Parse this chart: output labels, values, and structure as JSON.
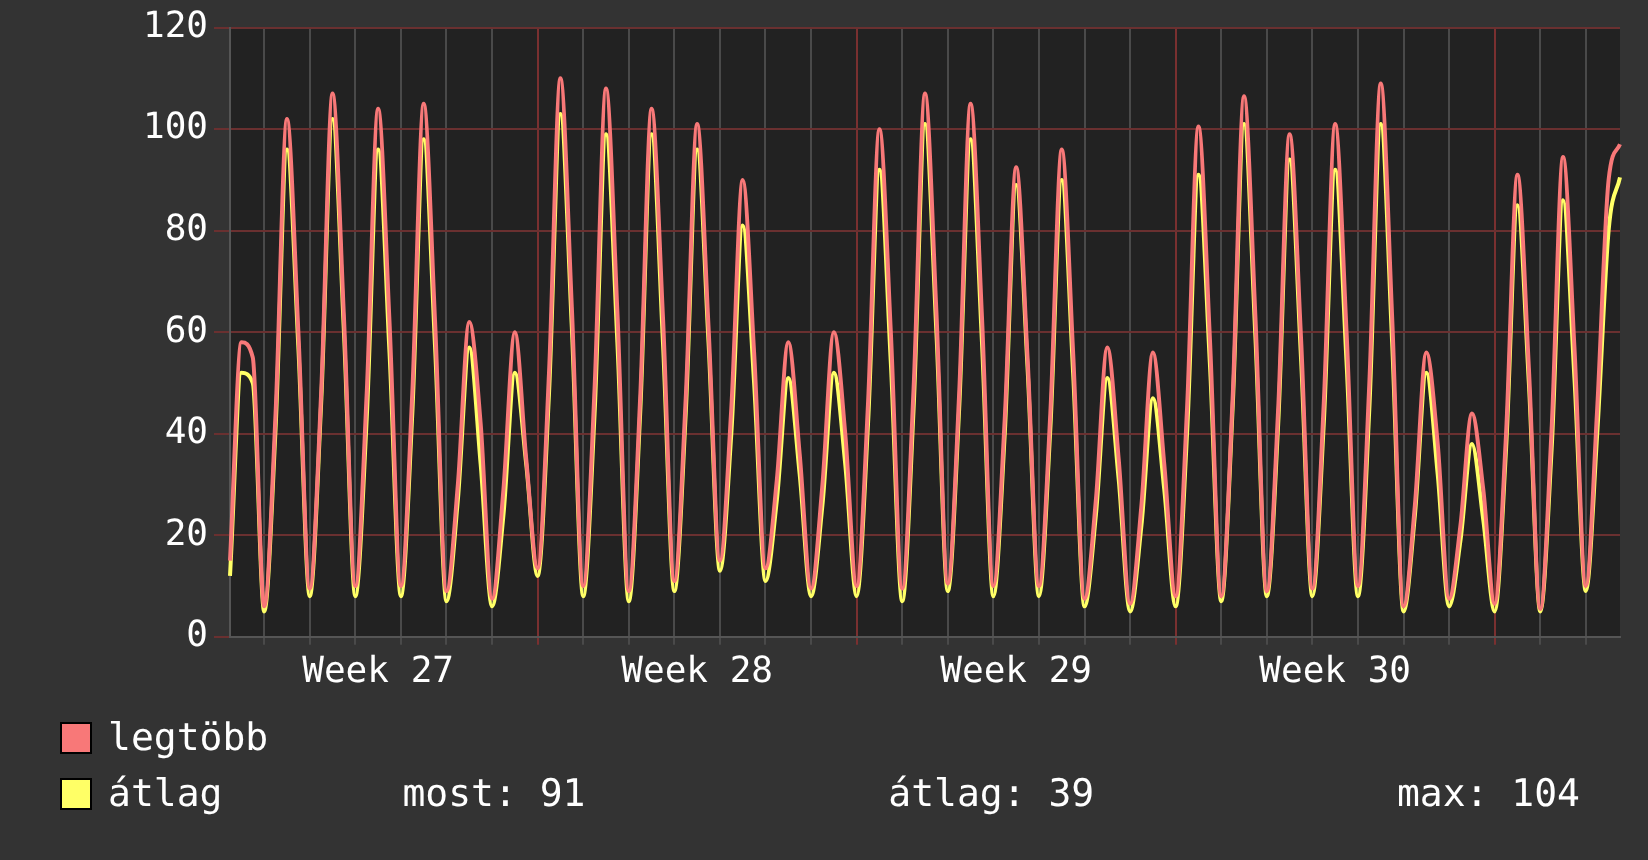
{
  "chart_data": {
    "type": "line",
    "categories": [
      null,
      null,
      null,
      null,
      null,
      null,
      null,
      null,
      null,
      null,
      null,
      null,
      null,
      "Week 27",
      null,
      null,
      null,
      null,
      null,
      null,
      null,
      null,
      null,
      null,
      null,
      null,
      null,
      null,
      null,
      null,
      null,
      null,
      null,
      null,
      null,
      null,
      null,
      null,
      null,
      null,
      null,
      "Week 28",
      null,
      null,
      null,
      null,
      null,
      null,
      null,
      null,
      null,
      null,
      null,
      null,
      null,
      null,
      null,
      null,
      null,
      null,
      null,
      null,
      null,
      null,
      null,
      null,
      null,
      null,
      null,
      "Week 29",
      null,
      null,
      null,
      null,
      null,
      null,
      null,
      null,
      null,
      null,
      null,
      null,
      null,
      null,
      null,
      null,
      null,
      null,
      null,
      null,
      null,
      null,
      null,
      null,
      null,
      null,
      null,
      "Week 30",
      null,
      null,
      null,
      null,
      null,
      null,
      null,
      null,
      null,
      null,
      null,
      null,
      null,
      null,
      null,
      null,
      null,
      null,
      null,
      null,
      null,
      null,
      null,
      null,
      null
    ],
    "series": [
      {
        "name": "legtöbb",
        "color": "#f87878",
        "values": [
          15,
          58,
          55,
          6,
          44,
          102,
          60,
          9.5,
          48,
          107,
          63,
          10,
          48,
          104,
          62,
          10,
          48,
          105,
          62,
          9,
          30,
          62,
          42,
          7.5,
          29,
          60,
          35,
          13.5,
          52,
          110,
          65,
          10,
          49,
          108,
          64,
          9,
          47,
          104,
          63,
          11,
          47,
          101,
          61,
          15,
          45,
          90,
          56,
          13.5,
          31,
          58,
          36,
          9.5,
          30,
          60,
          40,
          10,
          46,
          100,
          60,
          9.5,
          49,
          107,
          64,
          10.5,
          48,
          105,
          63,
          10,
          43,
          92.5,
          55,
          10,
          44,
          96,
          56,
          7.5,
          27,
          57,
          35,
          6.5,
          26,
          56,
          34,
          8,
          45,
          100.5,
          59,
          8,
          47,
          106.5,
          63,
          9,
          45,
          99,
          59,
          9.5,
          46,
          101,
          60,
          10,
          50,
          109,
          63,
          6,
          26,
          56,
          38,
          7.5,
          22,
          44,
          29,
          6.5,
          40,
          91,
          53,
          5.5,
          41,
          94.5,
          57,
          10,
          45,
          90,
          97
        ]
      },
      {
        "name": "átlag",
        "color": "#ffff66",
        "values": [
          12,
          52,
          50,
          5,
          41,
          96,
          57,
          8,
          46,
          102,
          60,
          8,
          43,
          96,
          56,
          8,
          44,
          98,
          57,
          7,
          27,
          57,
          34,
          6,
          24,
          52,
          34,
          12,
          48,
          103,
          61,
          8,
          44,
          99,
          58,
          7,
          44,
          99,
          58,
          9,
          44,
          96,
          58,
          13,
          40,
          81,
          50,
          11,
          27,
          51,
          32,
          8,
          26,
          52,
          34,
          8,
          42,
          92,
          54,
          7,
          45,
          101,
          60,
          9,
          45,
          98,
          58,
          8,
          40,
          89,
          53,
          8,
          41,
          90,
          52,
          6,
          24,
          51,
          31,
          5,
          22,
          47,
          29,
          6,
          40,
          91,
          54,
          7,
          45,
          101,
          59,
          8,
          42,
          94,
          55,
          8,
          42,
          92,
          54,
          8,
          45,
          101,
          58,
          5,
          24,
          52,
          32,
          6,
          19,
          38,
          23,
          5,
          37,
          85,
          50,
          5,
          37,
          86,
          51,
          9,
          40,
          80,
          90.5
        ]
      }
    ],
    "ylim": [
      0,
      120
    ],
    "yticks": [
      0,
      20,
      40,
      60,
      80,
      100,
      120
    ],
    "grid": true,
    "legend": "bottom left",
    "marker": "none",
    "line_style": "solid",
    "annotations": [
      "most: 91",
      "átlag: 39",
      "max: 104"
    ]
  }
}
